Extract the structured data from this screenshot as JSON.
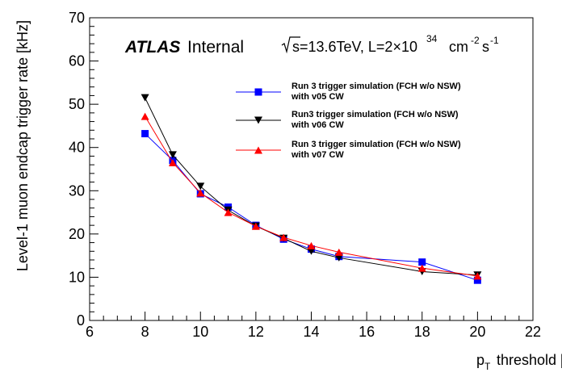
{
  "chart_data": {
    "type": "line",
    "xlabel": "threshold [GeV]",
    "xlabel_symbol": "p",
    "xlabel_subscript": "T",
    "ylabel": "Level-1 muon endcap trigger rate [kHz]",
    "xlim": [
      6,
      22
    ],
    "ylim": [
      0,
      70
    ],
    "xticks": [
      6,
      8,
      10,
      12,
      14,
      16,
      18,
      20,
      22
    ],
    "yticks": [
      0,
      10,
      20,
      30,
      40,
      50,
      60,
      70
    ],
    "grid": false,
    "legend_position": "top-right",
    "annotations": {
      "atlas": "ATLAS",
      "internal": "Internal",
      "energy_prefix": "s=13.6TeV, L=2×10",
      "energy_exp": "34",
      "energy_unit": "cm",
      "energy_unit_exp": "-2",
      "energy_unit2": "s",
      "energy_unit2_exp": "-1"
    },
    "series": [
      {
        "name_line1": "Run 3 trigger simulation (FCH w/o NSW)",
        "name_line2": " with v05 CW",
        "color": "#0000ff",
        "marker": "square",
        "x": [
          8,
          9,
          10,
          11,
          12,
          13,
          14,
          15,
          18,
          20
        ],
        "y": [
          43.2,
          37.0,
          29.3,
          26.2,
          22.0,
          18.8,
          16.5,
          14.8,
          13.5,
          9.3
        ]
      },
      {
        "name_line1": "Run3 trigger simulation (FCH w/o NSW)",
        "name_line2": "with v06 CW",
        "color": "#000000",
        "marker": "triangle-down",
        "x": [
          8,
          9,
          10,
          11,
          12,
          13,
          14,
          15,
          18,
          20
        ],
        "y": [
          51.5,
          38.3,
          31.0,
          25.5,
          21.8,
          19.0,
          16.0,
          14.5,
          11.3,
          10.5
        ]
      },
      {
        "name_line1": "Run 3 trigger simulation (FCH w/o NSW)",
        "name_line2": " with v07 CW",
        "color": "#ff0000",
        "marker": "triangle-up",
        "x": [
          8,
          9,
          10,
          11,
          12,
          13,
          14,
          15,
          18,
          20
        ],
        "y": [
          47.2,
          36.5,
          29.5,
          25.0,
          21.8,
          19.2,
          17.3,
          15.8,
          12.1,
          10.3
        ]
      }
    ]
  }
}
